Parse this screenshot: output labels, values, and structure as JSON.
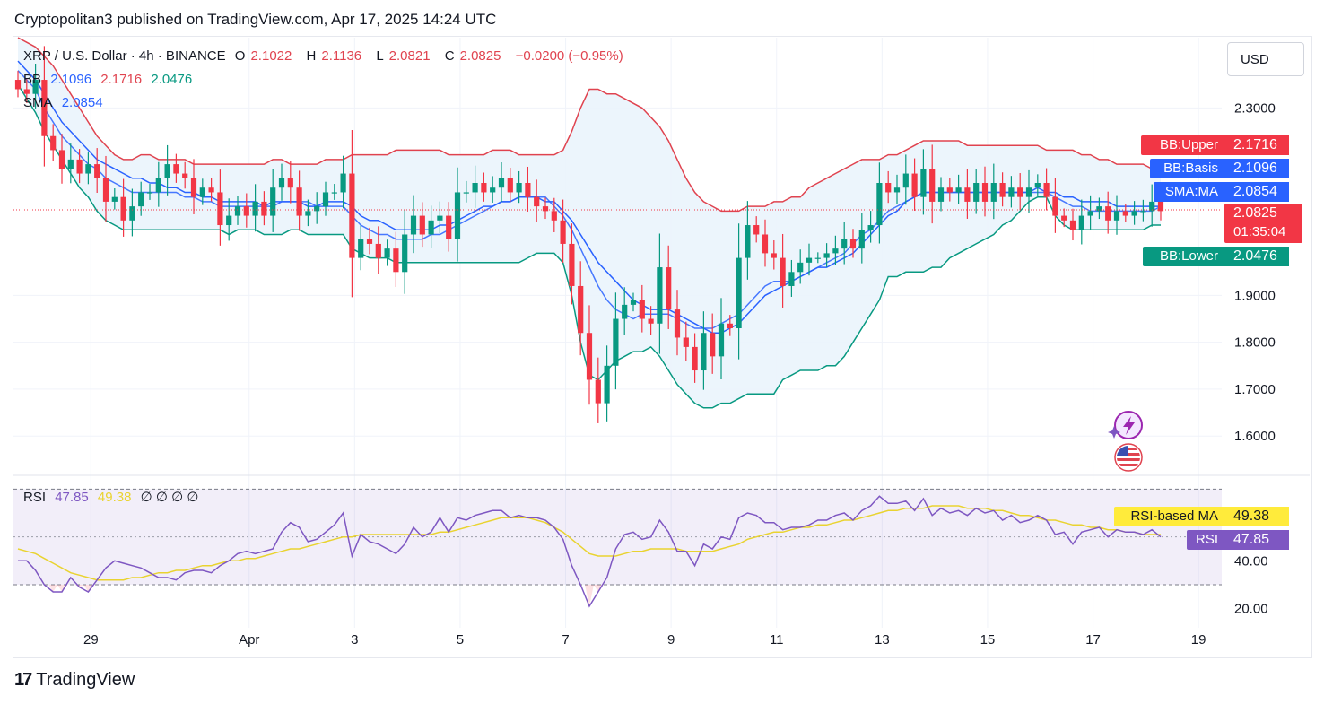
{
  "header": {
    "published": "Cryptopolitan3 published on TradingView.com, Apr 17, 2025 14:24 UTC"
  },
  "symbol": {
    "name": "XRP / U.S. Dollar · 4h · BINANCE",
    "open_label": "O",
    "open": "2.1022",
    "high_label": "H",
    "high": "2.1136",
    "low_label": "L",
    "low": "2.0821",
    "close_label": "C",
    "close": "2.0825",
    "change": "−0.0200 (−0.95%)"
  },
  "bb_legend": {
    "label": "BB",
    "basis": "2.1096",
    "upper": "2.1716",
    "lower": "2.0476"
  },
  "sma_legend": {
    "label": "SMA",
    "value": "2.0854"
  },
  "rsi_legend": {
    "label": "RSI",
    "rsi": "47.85",
    "ma": "49.38",
    "extras": "∅ ∅ ∅ ∅"
  },
  "currency": "USD",
  "price_tags": {
    "bb_upper": {
      "label": "BB:Upper",
      "value": "2.1716"
    },
    "bb_basis": {
      "label": "BB:Basis",
      "value": "2.1096"
    },
    "sma": {
      "label": "SMA:MA",
      "value": "2.0854"
    },
    "last": {
      "value": "2.0825",
      "countdown": "01:35:04"
    },
    "bb_lower": {
      "label": "BB:Lower",
      "value": "2.0476"
    }
  },
  "rsi_tags": {
    "ma": {
      "label": "RSI-based MA",
      "value": "49.38"
    },
    "rsi": {
      "label": "RSI",
      "value": "47.85"
    }
  },
  "watermark": "TradingView",
  "colors": {
    "up": "#089981",
    "down": "#f23645",
    "bb_upper": "#e0434f",
    "bb_basis": "#2962ff",
    "bb_lower": "#089981",
    "sma": "#2962ff",
    "rsi": "#7e57c2",
    "rsi_ma": "#e9d330",
    "band_fill": "#eaf4fc"
  },
  "chart_data": {
    "type": "candlestick",
    "timeframe": "4h",
    "y_axis_ticks": [
      "2.3000",
      "1.9000",
      "1.8000",
      "1.7000",
      "1.6000"
    ],
    "ylim": [
      1.52,
      2.45
    ],
    "x_axis_ticks": [
      {
        "label": "29",
        "i": 8.3
      },
      {
        "label": "Apr",
        "i": 26.3
      },
      {
        "label": "3",
        "i": 38.3
      },
      {
        "label": "5",
        "i": 50.3
      },
      {
        "label": "7",
        "i": 62.3
      },
      {
        "label": "9",
        "i": 74.3
      },
      {
        "label": "11",
        "i": 86.3
      },
      {
        "label": "13",
        "i": 98.3
      },
      {
        "label": "15",
        "i": 110.3
      },
      {
        "label": "17",
        "i": 122.3
      },
      {
        "label": "19",
        "i": 134.3
      }
    ],
    "last_price": 2.0825,
    "closes": [
      2.34,
      2.33,
      2.36,
      2.24,
      2.21,
      2.17,
      2.19,
      2.16,
      2.18,
      2.15,
      2.1,
      2.11,
      2.06,
      2.09,
      2.12,
      2.12,
      2.15,
      2.18,
      2.16,
      2.15,
      2.11,
      2.13,
      2.12,
      2.05,
      2.07,
      2.09,
      2.07,
      2.1,
      2.07,
      2.13,
      2.15,
      2.13,
      2.07,
      2.08,
      2.09,
      2.12,
      2.12,
      2.16,
      1.98,
      2.02,
      2.01,
      1.98,
      2.0,
      1.95,
      2.03,
      2.07,
      2.03,
      2.06,
      2.07,
      2.02,
      2.12,
      2.12,
      2.14,
      2.12,
      2.13,
      2.15,
      2.12,
      2.14,
      2.11,
      2.09,
      2.08,
      2.06,
      2.01,
      1.92,
      1.82,
      1.72,
      1.67,
      1.75,
      1.85,
      1.88,
      1.89,
      1.85,
      1.84,
      1.96,
      1.87,
      1.81,
      1.79,
      1.74,
      1.82,
      1.77,
      1.84,
      1.83,
      1.98,
      2.05,
      2.03,
      1.99,
      1.98,
      1.92,
      1.95,
      1.97,
      1.98,
      1.98,
      1.99,
      2.0,
      2.02,
      2.0,
      2.04,
      2.05,
      2.14,
      2.12,
      2.13,
      2.16,
      2.11,
      2.17,
      2.1,
      2.13,
      2.12,
      2.13,
      2.1,
      2.14,
      2.1,
      2.14,
      2.11,
      2.13,
      2.11,
      2.13,
      2.14,
      2.11,
      2.07,
      2.06,
      2.04,
      2.07,
      2.08,
      2.09,
      2.06,
      2.08,
      2.07,
      2.08,
      2.08,
      2.1,
      2.08
    ],
    "bb_upper": [
      2.45,
      2.44,
      2.43,
      2.41,
      2.39,
      2.36,
      2.33,
      2.3,
      2.27,
      2.24,
      2.22,
      2.2,
      2.19,
      2.19,
      2.2,
      2.2,
      2.19,
      2.19,
      2.19,
      2.19,
      2.18,
      2.18,
      2.18,
      2.18,
      2.18,
      2.18,
      2.18,
      2.18,
      2.18,
      2.19,
      2.19,
      2.18,
      2.18,
      2.18,
      2.18,
      2.19,
      2.19,
      2.19,
      2.2,
      2.2,
      2.2,
      2.2,
      2.2,
      2.21,
      2.21,
      2.21,
      2.21,
      2.21,
      2.21,
      2.2,
      2.2,
      2.2,
      2.2,
      2.2,
      2.21,
      2.21,
      2.21,
      2.2,
      2.2,
      2.2,
      2.2,
      2.2,
      2.21,
      2.25,
      2.3,
      2.34,
      2.34,
      2.33,
      2.33,
      2.32,
      2.31,
      2.3,
      2.28,
      2.26,
      2.23,
      2.19,
      2.15,
      2.12,
      2.1,
      2.09,
      2.08,
      2.08,
      2.08,
      2.09,
      2.09,
      2.09,
      2.1,
      2.1,
      2.11,
      2.11,
      2.13,
      2.14,
      2.15,
      2.16,
      2.17,
      2.18,
      2.19,
      2.19,
      2.19,
      2.2,
      2.2,
      2.21,
      2.22,
      2.23,
      2.23,
      2.23,
      2.23,
      2.23,
      2.22,
      2.22,
      2.22,
      2.22,
      2.22,
      2.22,
      2.22,
      2.22,
      2.22,
      2.21,
      2.21,
      2.21,
      2.21,
      2.2,
      2.2,
      2.19,
      2.19,
      2.18,
      2.18,
      2.18,
      2.18,
      2.17,
      2.17
    ],
    "bb_basis": [
      2.4,
      2.38,
      2.36,
      2.33,
      2.3,
      2.27,
      2.25,
      2.23,
      2.21,
      2.19,
      2.18,
      2.17,
      2.16,
      2.15,
      2.15,
      2.14,
      2.14,
      2.13,
      2.13,
      2.12,
      2.12,
      2.11,
      2.11,
      2.1,
      2.1,
      2.1,
      2.1,
      2.1,
      2.09,
      2.1,
      2.1,
      2.1,
      2.1,
      2.09,
      2.09,
      2.1,
      2.1,
      2.1,
      2.09,
      2.07,
      2.06,
      2.06,
      2.05,
      2.04,
      2.04,
      2.04,
      2.04,
      2.04,
      2.05,
      2.05,
      2.06,
      2.07,
      2.08,
      2.09,
      2.09,
      2.1,
      2.1,
      2.11,
      2.11,
      2.11,
      2.1,
      2.1,
      2.08,
      2.06,
      2.03,
      2.0,
      1.97,
      1.95,
      1.93,
      1.91,
      1.89,
      1.88,
      1.87,
      1.87,
      1.87,
      1.86,
      1.85,
      1.84,
      1.83,
      1.82,
      1.82,
      1.83,
      1.84,
      1.86,
      1.88,
      1.9,
      1.91,
      1.92,
      1.93,
      1.94,
      1.95,
      1.96,
      1.96,
      1.97,
      1.98,
      1.99,
      2.01,
      2.03,
      2.05,
      2.07,
      2.08,
      2.1,
      2.11,
      2.12,
      2.12,
      2.12,
      2.12,
      2.12,
      2.12,
      2.12,
      2.12,
      2.12,
      2.12,
      2.12,
      2.12,
      2.12,
      2.13,
      2.12,
      2.12,
      2.11,
      2.11,
      2.1,
      2.1,
      2.1,
      2.1,
      2.09,
      2.09,
      2.09,
      2.09,
      2.09,
      2.09
    ],
    "bb_lower": [
      2.35,
      2.32,
      2.29,
      2.25,
      2.22,
      2.19,
      2.16,
      2.13,
      2.11,
      2.08,
      2.06,
      2.05,
      2.04,
      2.04,
      2.04,
      2.04,
      2.04,
      2.04,
      2.04,
      2.04,
      2.04,
      2.04,
      2.04,
      2.04,
      2.03,
      2.04,
      2.04,
      2.04,
      2.03,
      2.03,
      2.03,
      2.04,
      2.04,
      2.03,
      2.03,
      2.03,
      2.03,
      2.03,
      2.0,
      1.99,
      1.98,
      1.98,
      1.98,
      1.97,
      1.97,
      1.97,
      1.97,
      1.97,
      1.97,
      1.97,
      1.97,
      1.97,
      1.97,
      1.97,
      1.97,
      1.97,
      1.97,
      1.97,
      1.98,
      1.99,
      1.99,
      1.99,
      1.97,
      1.9,
      1.8,
      1.73,
      1.72,
      1.74,
      1.76,
      1.77,
      1.78,
      1.78,
      1.79,
      1.77,
      1.74,
      1.71,
      1.69,
      1.67,
      1.66,
      1.66,
      1.67,
      1.67,
      1.68,
      1.69,
      1.69,
      1.69,
      1.69,
      1.72,
      1.73,
      1.74,
      1.74,
      1.74,
      1.75,
      1.75,
      1.77,
      1.8,
      1.83,
      1.86,
      1.89,
      1.94,
      1.94,
      1.95,
      1.95,
      1.95,
      1.96,
      1.96,
      1.98,
      1.99,
      2.0,
      2.01,
      2.02,
      2.03,
      2.05,
      2.06,
      2.08,
      2.1,
      2.11,
      2.11,
      2.07,
      2.05,
      2.04,
      2.04,
      2.04,
      2.04,
      2.04,
      2.04,
      2.04,
      2.04,
      2.04,
      2.05,
      2.05
    ],
    "sma": [
      2.38,
      2.36,
      2.34,
      2.3,
      2.27,
      2.24,
      2.22,
      2.2,
      2.18,
      2.17,
      2.15,
      2.14,
      2.13,
      2.12,
      2.12,
      2.12,
      2.12,
      2.12,
      2.12,
      2.11,
      2.11,
      2.1,
      2.1,
      2.09,
      2.09,
      2.09,
      2.09,
      2.09,
      2.09,
      2.09,
      2.1,
      2.1,
      2.1,
      2.1,
      2.09,
      2.09,
      2.09,
      2.09,
      2.07,
      2.05,
      2.04,
      2.03,
      2.03,
      2.02,
      2.02,
      2.02,
      2.02,
      2.03,
      2.03,
      2.04,
      2.05,
      2.06,
      2.07,
      2.08,
      2.09,
      2.1,
      2.1,
      2.11,
      2.11,
      2.11,
      2.11,
      2.09,
      2.07,
      2.04,
      2.0,
      1.96,
      1.92,
      1.89,
      1.87,
      1.86,
      1.85,
      1.86,
      1.86,
      1.86,
      1.86,
      1.85,
      1.84,
      1.83,
      1.83,
      1.83,
      1.84,
      1.85,
      1.86,
      1.88,
      1.9,
      1.92,
      1.93,
      1.93,
      1.93,
      1.94,
      1.95,
      1.96,
      1.97,
      1.98,
      1.99,
      2.01,
      2.03,
      2.04,
      2.06,
      2.08,
      2.09,
      2.1,
      2.11,
      2.12,
      2.12,
      2.12,
      2.12,
      2.12,
      2.12,
      2.12,
      2.12,
      2.12,
      2.12,
      2.12,
      2.12,
      2.12,
      2.12,
      2.12,
      2.11,
      2.1,
      2.09,
      2.09,
      2.08,
      2.08,
      2.08,
      2.08,
      2.08,
      2.08,
      2.08,
      2.08,
      2.09
    ],
    "rsi_panel": {
      "y_axis_ticks": [
        "40.00",
        "20.00"
      ],
      "ylim": [
        12,
        75
      ],
      "upper_band": 70,
      "middle": 50,
      "lower_band": 30,
      "rsi": [
        40,
        40,
        36,
        30,
        27,
        27,
        33,
        29,
        27,
        32,
        37,
        40,
        39,
        38,
        37,
        35,
        33,
        33,
        32,
        35,
        36,
        36,
        35,
        38,
        40,
        43,
        44,
        43,
        44,
        45,
        52,
        56,
        54,
        48,
        49,
        52,
        55,
        60,
        42,
        51,
        48,
        47,
        45,
        43,
        47,
        54,
        50,
        52,
        58,
        52,
        58,
        57,
        59,
        60,
        61,
        61,
        58,
        59,
        58,
        58,
        57,
        54,
        49,
        38,
        30,
        21,
        27,
        33,
        45,
        51,
        52,
        49,
        50,
        57,
        52,
        44,
        44,
        38,
        47,
        45,
        50,
        49,
        58,
        60,
        59,
        56,
        56,
        53,
        54,
        54,
        55,
        57,
        57,
        59,
        60,
        57,
        61,
        63,
        67,
        64,
        64,
        65,
        61,
        66,
        59,
        62,
        60,
        61,
        59,
        62,
        60,
        61,
        57,
        59,
        56,
        57,
        59,
        57,
        51,
        52,
        47,
        52,
        53,
        54,
        50,
        53,
        52,
        52,
        51,
        53,
        50
      ],
      "rsi_ma": [
        45,
        44,
        43,
        41,
        39,
        37,
        35,
        34,
        33,
        32,
        32,
        32,
        32,
        33,
        33,
        34,
        35,
        35,
        36,
        36,
        37,
        38,
        38,
        39,
        40,
        40,
        41,
        41,
        42,
        43,
        44,
        45,
        45,
        46,
        47,
        48,
        49,
        50,
        50,
        51,
        51,
        51,
        51,
        51,
        51,
        51,
        51,
        51,
        52,
        52,
        53,
        54,
        55,
        56,
        57,
        58,
        58,
        58,
        58,
        57,
        56,
        54,
        52,
        49,
        46,
        43,
        42,
        42,
        42,
        43,
        44,
        44,
        45,
        45,
        45,
        45,
        44,
        44,
        44,
        44,
        45,
        46,
        47,
        49,
        50,
        51,
        52,
        52,
        53,
        54,
        54,
        55,
        55,
        56,
        57,
        57,
        58,
        59,
        60,
        61,
        61,
        62,
        62,
        62,
        63,
        63,
        63,
        63,
        62,
        62,
        62,
        61,
        61,
        60,
        59,
        59,
        58,
        57,
        57,
        56,
        55,
        55,
        54,
        54,
        53,
        53,
        52,
        52,
        51,
        51,
        51
      ]
    }
  }
}
